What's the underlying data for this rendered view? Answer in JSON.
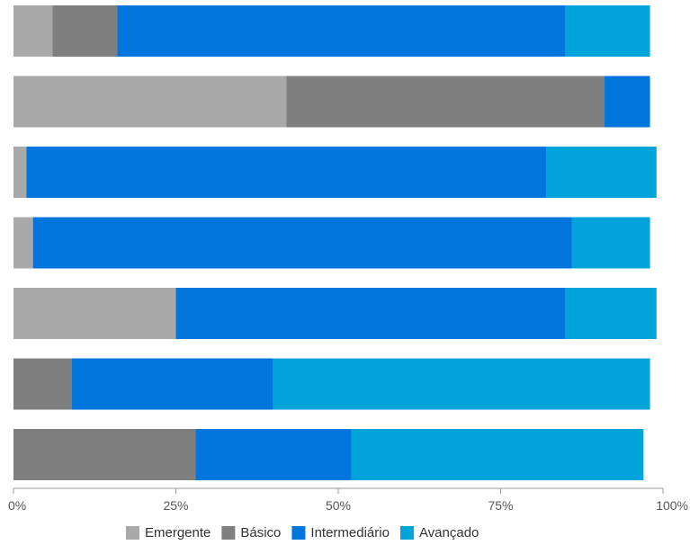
{
  "chart_data": {
    "type": "bar",
    "orientation": "horizontal",
    "stacked": true,
    "title": "",
    "xlabel": "",
    "ylabel": "",
    "xlim": [
      0,
      100
    ],
    "x_ticks": [
      "0%",
      "25%",
      "50%",
      "75%",
      "100%"
    ],
    "grid": false,
    "legend_position": "bottom",
    "categories": [
      "",
      "",
      "",
      "",
      "",
      "",
      ""
    ],
    "series": [
      {
        "name": "Emergente",
        "color": "#a9a9a9",
        "values": [
          6,
          42,
          2,
          3,
          25,
          0,
          0
        ]
      },
      {
        "name": "Básico",
        "color": "#7f7f7f",
        "values": [
          10,
          49,
          0,
          0,
          0,
          9,
          28
        ]
      },
      {
        "name": "Intermediário",
        "color": "#0276dd",
        "values": [
          69,
          7,
          80,
          83,
          60,
          31,
          24
        ]
      },
      {
        "name": "Avançado",
        "color": "#00a4db",
        "values": [
          13,
          0,
          17,
          12,
          14,
          58,
          45
        ]
      }
    ]
  }
}
